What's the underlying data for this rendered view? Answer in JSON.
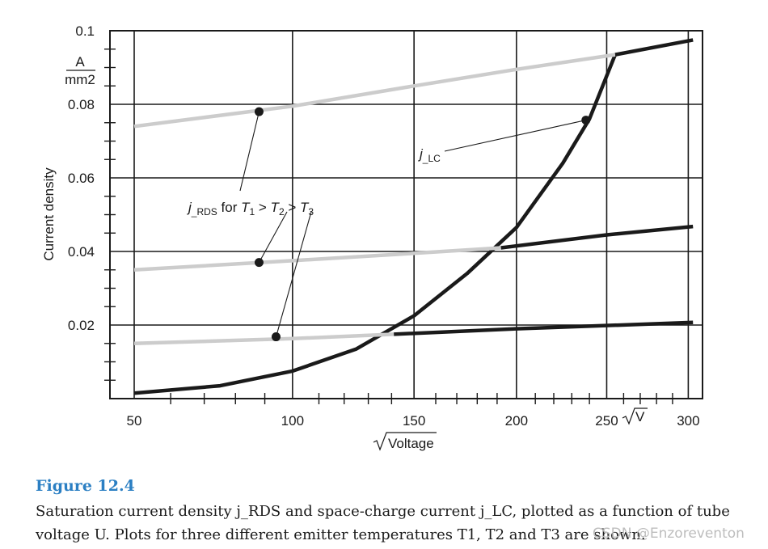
{
  "chart_data": {
    "type": "line",
    "title": "",
    "xlabel": "Voltage",
    "ylabel": "Current density",
    "y_unit_numerator": "A",
    "y_unit_denominator": "mm2",
    "x_unit_label": "V",
    "x_axis_scale": "sqrt",
    "xlim": [
      50,
      305
    ],
    "ylim": [
      0,
      0.1
    ],
    "x_ticks": [
      50,
      100,
      150,
      200,
      250,
      300
    ],
    "x_tick_labels": [
      "50",
      "100",
      "150",
      "200",
      "250",
      "300"
    ],
    "y_ticks": [
      0.02,
      0.04,
      0.06,
      0.08,
      0.1
    ],
    "y_tick_labels": [
      "0.02",
      "0.04",
      "0.06",
      "0.08",
      "0.1"
    ],
    "grid": true,
    "series": [
      {
        "name": "j_LC",
        "color": "#1a1a1a",
        "values": [
          [
            50,
            0.0015
          ],
          [
            75,
            0.0035
          ],
          [
            100,
            0.0075
          ],
          [
            125,
            0.0135
          ],
          [
            150,
            0.0225
          ],
          [
            175,
            0.034
          ],
          [
            200,
            0.0465
          ],
          [
            225,
            0.064
          ],
          [
            240,
            0.076
          ],
          [
            255,
            0.0935
          ]
        ]
      },
      {
        "name": "j_RDS T1",
        "color": "#cccccc",
        "values": [
          [
            50,
            0.074
          ],
          [
            100,
            0.0795
          ],
          [
            150,
            0.085
          ],
          [
            200,
            0.0895
          ],
          [
            255,
            0.0935
          ]
        ]
      },
      {
        "name": "j_RDS T1 limited",
        "color": "#1a1a1a",
        "values": [
          [
            255,
            0.0935
          ],
          [
            303,
            0.0975
          ]
        ]
      },
      {
        "name": "j_RDS T2",
        "color": "#cccccc",
        "values": [
          [
            50,
            0.035
          ],
          [
            100,
            0.0375
          ],
          [
            150,
            0.0395
          ],
          [
            192,
            0.041
          ]
        ]
      },
      {
        "name": "j_RDS T2 limited",
        "color": "#1a1a1a",
        "values": [
          [
            192,
            0.041
          ],
          [
            250,
            0.0445
          ],
          [
            303,
            0.0468
          ]
        ]
      },
      {
        "name": "j_RDS T3",
        "color": "#cccccc",
        "values": [
          [
            50,
            0.015
          ],
          [
            100,
            0.0163
          ],
          [
            141,
            0.0175
          ]
        ]
      },
      {
        "name": "j_RDS T3 limited",
        "color": "#1a1a1a",
        "values": [
          [
            141,
            0.0175
          ],
          [
            200,
            0.019
          ],
          [
            303,
            0.0207
          ]
        ]
      }
    ],
    "markers": [
      [
        88,
        0.078
      ],
      [
        88,
        0.037
      ],
      [
        94,
        0.0168
      ],
      [
        238,
        0.0757
      ]
    ],
    "annotations": [
      {
        "text_parts": [
          "j",
          "_RDS",
          " for ",
          "T",
          "1",
          " > ",
          "T",
          "2",
          " > ",
          "T",
          "3"
        ]
      },
      {
        "text_parts": [
          "j",
          "_LC"
        ]
      }
    ]
  },
  "caption": {
    "figure_label": "Figure 12.4",
    "text": "Saturation current density j_RDS and space-charge current j_LC, plotted as a function of tube voltage U. Plots for three different emitter temperatures T1, T2 and T3 are shown."
  },
  "watermark": "CSDN @Enzoreventon"
}
